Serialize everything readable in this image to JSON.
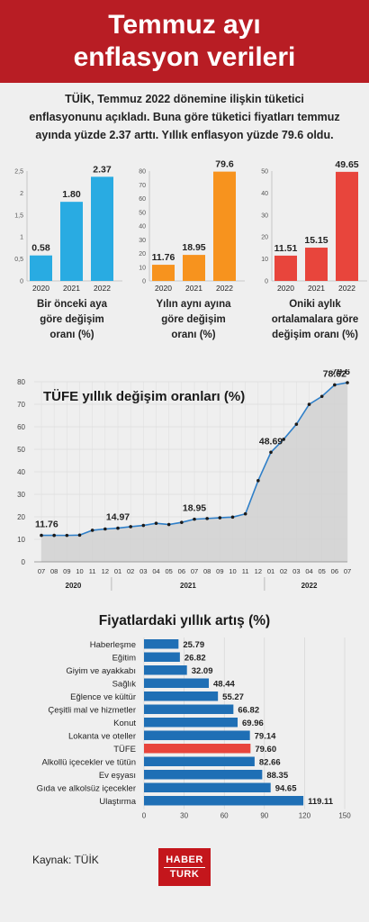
{
  "header": {
    "title_line1": "Temmuz ayı",
    "title_line2": "enflasyon verileri"
  },
  "intro": {
    "line1": "TÜİK, Temmuz 2022 dönemine ilişkin tüketici",
    "line2": "enflasyonunu açıkladı. Buna göre tüketici fiyatları temmuz",
    "line3": "ayında yüzde 2.37 arttı. Yıllık enflasyon yüzde 79.6 oldu."
  },
  "colors": {
    "header": "#b81d24",
    "blue": "#29abe2",
    "orange": "#f7931e",
    "red": "#e8453c",
    "dark_blue": "#1f6fb5",
    "tufe_bar": "#e8453c",
    "area": "#d3d3d3",
    "line": "#2f7fc8"
  },
  "chart_data": [
    {
      "type": "bar",
      "categories": [
        "2020",
        "2021",
        "2022"
      ],
      "values": [
        0.58,
        1.8,
        2.37
      ],
      "value_labels": [
        "0.58",
        "1.80",
        "2.37"
      ],
      "ylim": [
        0,
        2.5
      ],
      "yticks": [
        "0",
        "0,5",
        "1",
        "1,5",
        "2",
        "2,5"
      ],
      "caption": [
        "Bir önceki aya",
        "göre değişim",
        "oranı (%)"
      ],
      "color": "#29abe2"
    },
    {
      "type": "bar",
      "categories": [
        "2020",
        "2021",
        "2022"
      ],
      "values": [
        11.76,
        18.95,
        79.6
      ],
      "value_labels": [
        "11.76",
        "18.95",
        "79.6"
      ],
      "ylim": [
        0,
        80
      ],
      "yticks": [
        "0",
        "10",
        "20",
        "30",
        "40",
        "50",
        "60",
        "70",
        "80"
      ],
      "caption": [
        "Yılın aynı ayına",
        "göre değişim",
        "oranı (%)"
      ],
      "color": "#f7931e"
    },
    {
      "type": "bar",
      "categories": [
        "2020",
        "2021",
        "2022"
      ],
      "values": [
        11.51,
        15.15,
        49.65
      ],
      "value_labels": [
        "11.51",
        "15.15",
        "49.65"
      ],
      "ylim": [
        0,
        50
      ],
      "yticks": [
        "0",
        "10",
        "20",
        "30",
        "40",
        "50"
      ],
      "caption": [
        "Oniki aylık",
        "ortalamalara göre",
        "değişim oranı (%)"
      ],
      "color": "#e8453c"
    },
    {
      "type": "area",
      "title": "TÜFE yıllık değişim oranları (%)",
      "ylim": [
        0,
        80
      ],
      "yticks": [
        "0",
        "10",
        "20",
        "30",
        "40",
        "50",
        "60",
        "70",
        "80"
      ],
      "x": [
        "07",
        "08",
        "09",
        "10",
        "11",
        "12",
        "01",
        "02",
        "03",
        "04",
        "05",
        "06",
        "07",
        "08",
        "09",
        "10",
        "11",
        "12",
        "01",
        "02",
        "03",
        "04",
        "05",
        "06",
        "07"
      ],
      "years": [
        {
          "label": "2020",
          "from": 0,
          "to": 5
        },
        {
          "label": "2021",
          "from": 6,
          "to": 17
        },
        {
          "label": "2022",
          "from": 18,
          "to": 24
        }
      ],
      "values": [
        11.76,
        11.77,
        11.75,
        11.89,
        14.03,
        14.6,
        14.97,
        15.61,
        16.19,
        17.14,
        16.59,
        17.53,
        18.95,
        19.25,
        19.58,
        19.89,
        21.31,
        36.08,
        48.69,
        54.44,
        61.14,
        69.97,
        73.5,
        78.62,
        79.6
      ],
      "annotations": [
        {
          "index": 0,
          "label": "11.76"
        },
        {
          "index": 6,
          "label": "14.97"
        },
        {
          "index": 12,
          "label": "18.95"
        },
        {
          "index": 18,
          "label": "48.69"
        },
        {
          "index": 23,
          "label": "78.62"
        },
        {
          "index": 24,
          "label": "79.6"
        }
      ]
    },
    {
      "type": "bar",
      "orientation": "horizontal",
      "title": "Fiyatlardaki yıllık artış (%)",
      "categories": [
        "Haberleşme",
        "Eğitim",
        "Giyim ve ayakkabı",
        "Sağlık",
        "Eğlence ve kültür",
        "Çeşitli mal ve hizmetler",
        "Konut",
        "Lokanta ve oteller",
        "TÜFE",
        "Alkollü içecekler ve tütün",
        "Ev eşyası",
        "Gıda ve alkolsüz içecekler",
        "Ulaştırma"
      ],
      "values": [
        25.79,
        26.82,
        32.09,
        48.44,
        55.27,
        66.82,
        69.96,
        79.14,
        79.6,
        82.66,
        88.35,
        94.65,
        119.11
      ],
      "value_labels": [
        "25.79",
        "26.82",
        "32.09",
        "48.44",
        "55.27",
        "66.82",
        "69.96",
        "79.14",
        "79.60",
        "82.66",
        "88.35",
        "94.65",
        "119.11"
      ],
      "highlight": "TÜFE",
      "xlim": [
        0,
        150
      ],
      "xticks": [
        "0",
        "30",
        "60",
        "90",
        "120",
        "150"
      ]
    }
  ],
  "footer": {
    "source": "Kaynak:  TÜİK",
    "logo_line1": "HABER",
    "logo_line2": "TURK"
  }
}
